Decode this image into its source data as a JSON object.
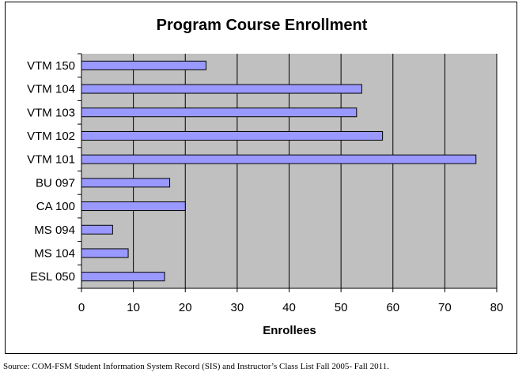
{
  "chart_data": {
    "type": "bar",
    "orientation": "horizontal",
    "title": "Program Course Enrollment",
    "xlabel": "Enrollees",
    "ylabel": "",
    "categories": [
      "VTM 150",
      "VTM 104",
      "VTM 103",
      "VTM 102",
      "VTM 101",
      "BU 097",
      "CA 100",
      "MS 094",
      "MS 104",
      "ESL 050"
    ],
    "values": [
      24,
      54,
      53,
      58,
      76,
      17,
      20,
      6,
      9,
      16
    ],
    "xlim": [
      0,
      80
    ],
    "xticks": [
      "0",
      "10",
      "20",
      "30",
      "40",
      "50",
      "60",
      "70",
      "80"
    ],
    "grid": true,
    "legend": "none",
    "colors": {
      "bar_fill": "#9999ff",
      "bar_stroke": "#000000",
      "plot_background": "#c0c0c0",
      "gridline": "#000000"
    }
  },
  "source_note": "Source: COM-FSM Student Information System Record (SIS) and Instructor’s Class List Fall 2005- Fall 2011."
}
